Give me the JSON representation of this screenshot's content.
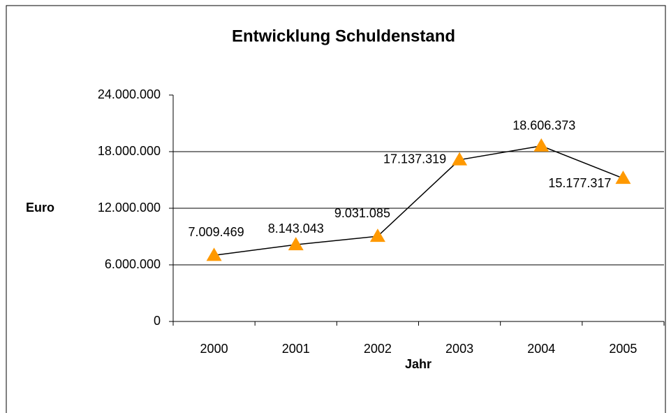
{
  "chart_data": {
    "type": "line",
    "title": "Entwicklung  Schuldenstand",
    "x_label": "Jahr",
    "y_label": "Euro",
    "categories": [
      "2000",
      "2001",
      "2002",
      "2003",
      "2004",
      "2005"
    ],
    "values": [
      7009469,
      8143043,
      9031085,
      17137319,
      18606373,
      15177317
    ],
    "value_labels": [
      "7.009.469",
      "8.143.043",
      "9.031.085",
      "17.137.319",
      "18.606.373",
      "15.177.317"
    ],
    "line_color": "#000000",
    "marker_color": "#ff9900",
    "marker": "triangle",
    "ylim": [
      0,
      24000000
    ],
    "yticks": [
      0,
      {
        "value": 6000000,
        "label": "6.000.000"
      },
      {
        "value": 12000000,
        "label": "12.000.000"
      },
      {
        "value": 18000000,
        "label": "18.000.000"
      },
      {
        "value": 24000000,
        "label": "24.000.000"
      }
    ],
    "grid": true
  }
}
